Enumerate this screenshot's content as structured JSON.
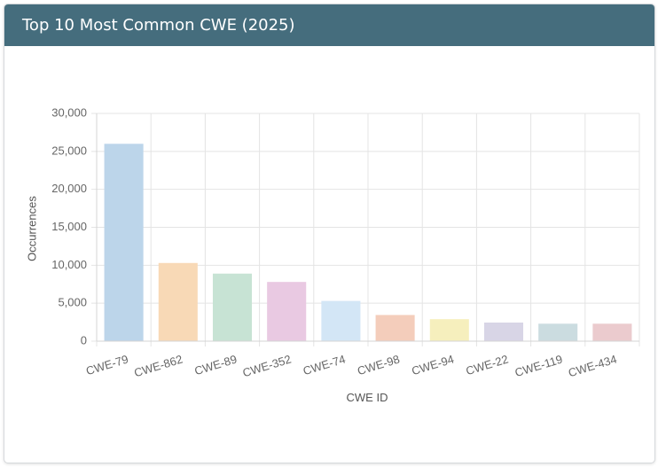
{
  "card": {
    "title": "Top 10 Most Common CWE (2025)"
  },
  "chart_data": {
    "type": "bar",
    "title": "",
    "xlabel": "CWE ID",
    "ylabel": "Occurrences",
    "ylim": [
      0,
      30000
    ],
    "yticks": [
      0,
      5000,
      10000,
      15000,
      20000,
      25000,
      30000
    ],
    "ytick_labels": [
      "0",
      "5,000",
      "10,000",
      "15,000",
      "20,000",
      "25,000",
      "30,000"
    ],
    "grid": true,
    "legend": "none",
    "categories": [
      "CWE-79",
      "CWE-862",
      "CWE-89",
      "CWE-352",
      "CWE-74",
      "CWE-98",
      "CWE-94",
      "CWE-22",
      "CWE-119",
      "CWE-434"
    ],
    "values": [
      26000,
      10300,
      8900,
      7800,
      5300,
      3450,
      2900,
      2450,
      2300,
      2300
    ],
    "colors": [
      "#bcd5ea",
      "#f8d9b6",
      "#c7e3d4",
      "#e9c9e2",
      "#d3e6f6",
      "#f4cdbb",
      "#f6efbd",
      "#d8d5e6",
      "#cbdce0",
      "#ebcbce"
    ]
  }
}
